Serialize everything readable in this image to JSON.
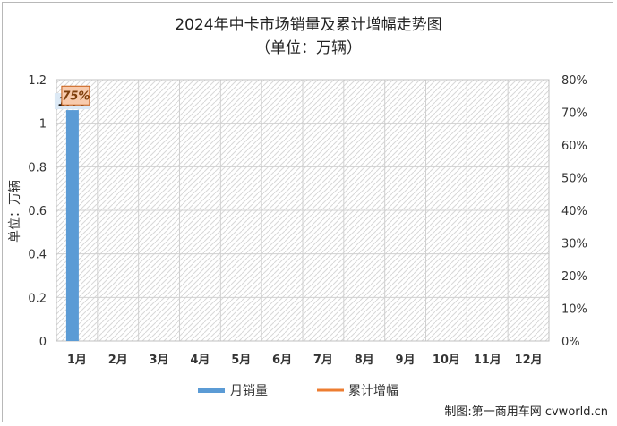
{
  "chart_data": {
    "type": "bar",
    "title": "2024年中卡市场销量及累计增幅走势图",
    "subtitle": "（单位：万辆）",
    "ylabel": "单位：万辆",
    "categories": [
      "1月",
      "2月",
      "3月",
      "4月",
      "5月",
      "6月",
      "7月",
      "8月",
      "9月",
      "10月",
      "11月",
      "12月"
    ],
    "y_left_ticks": [
      "0",
      "0.2",
      "0.4",
      "0.6",
      "0.8",
      "1",
      "1.2"
    ],
    "y_right_ticks": [
      "0%",
      "10%",
      "20%",
      "30%",
      "40%",
      "50%",
      "60%",
      "70%",
      "80%"
    ],
    "ylim_left": [
      0,
      1.2
    ],
    "ylim_right": [
      0,
      80
    ],
    "series": [
      {
        "name": "月销量",
        "type": "bar",
        "axis": "left",
        "color": "#5b9bd5",
        "values": [
          1.06,
          null,
          null,
          null,
          null,
          null,
          null,
          null,
          null,
          null,
          null,
          null
        ],
        "labels": [
          "1.06"
        ]
      },
      {
        "name": "累计增幅",
        "type": "line",
        "axis": "right",
        "color": "#ed7d31",
        "values": [
          75,
          null,
          null,
          null,
          null,
          null,
          null,
          null,
          null,
          null,
          null,
          null
        ],
        "labels": [
          "75%"
        ]
      }
    ],
    "legend_position": "bottom",
    "grid": true
  },
  "watermark": "制图:第一商用车网 cvworld.cn"
}
